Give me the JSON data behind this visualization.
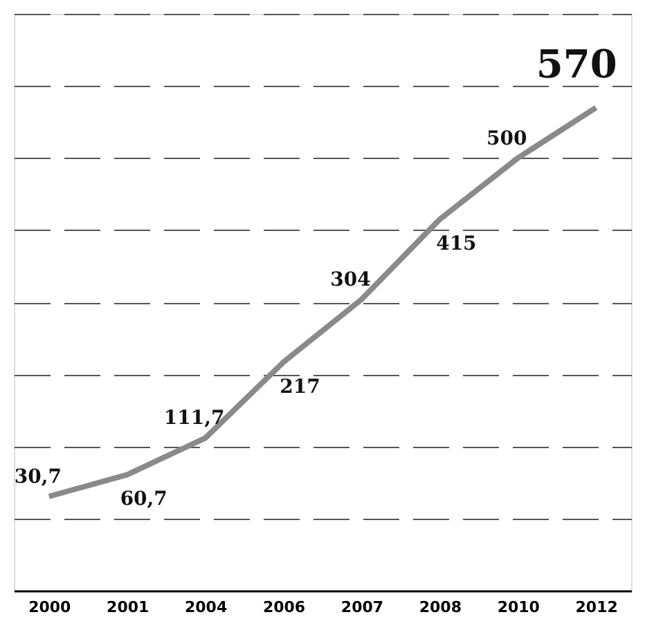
{
  "chart_data": {
    "type": "line",
    "categories": [
      "2000",
      "2001",
      "2004",
      "2006",
      "2007",
      "2008",
      "2010",
      "2012"
    ],
    "series": [
      {
        "color": "#8a8a8a",
        "values": [
          30.7,
          60.7,
          111.7,
          217,
          304,
          415,
          500,
          570
        ],
        "value_labels": [
          "30,7",
          "60,7",
          "111,7",
          "217",
          "304",
          "415",
          "500",
          "570"
        ]
      }
    ],
    "grid": "y",
    "tick_labels": "x",
    "marker": "none",
    "line_style": "solid"
  }
}
